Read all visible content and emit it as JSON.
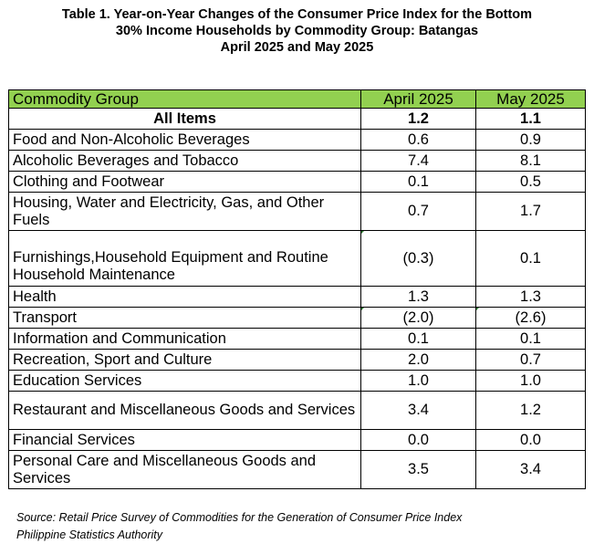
{
  "title": {
    "line1": "Table 1. Year-on-Year Changes of the Consumer Price Index for the Bottom",
    "line2": "30% Income Households by Commodity Group: Batangas",
    "line3": "April 2025 and May 2025"
  },
  "table": {
    "headers": [
      "Commodity Group",
      "April 2025",
      "May 2025"
    ],
    "all_items": {
      "label": "All Items",
      "april": "1.2",
      "may": "1.1"
    },
    "rows": [
      {
        "label": "Food and Non-Alcoholic Beverages",
        "april": "0.6",
        "may": "0.9"
      },
      {
        "label": "Alcoholic Beverages and Tobacco",
        "april": "7.4",
        "may": "8.1"
      },
      {
        "label": "Clothing and Footwear",
        "april": "0.1",
        "may": "0.5"
      },
      {
        "label": "Housing, Water and Electricity, Gas, and Other Fuels",
        "april": "0.7",
        "may": "1.7"
      },
      {
        "label": "Furnishings,Household Equipment and Routine Household Maintenance",
        "april": "(0.3)",
        "may": "0.1"
      },
      {
        "label": "Health",
        "april": "1.3",
        "may": "1.3"
      },
      {
        "label": "Transport",
        "april": "(2.0)",
        "may": "(2.6)"
      },
      {
        "label": "Information and Communication",
        "april": "0.1",
        "may": "0.1"
      },
      {
        "label": "Recreation, Sport and Culture",
        "april": "2.0",
        "may": "0.7"
      },
      {
        "label": "Education Services",
        "april": "1.0",
        "may": "1.0"
      },
      {
        "label": "Restaurant and Miscellaneous Goods and Services",
        "april": "3.4",
        "may": "1.2"
      },
      {
        "label": "Financial Services",
        "april": "0.0",
        "may": "0.0"
      },
      {
        "label": "Personal Care and Miscellaneous Goods and Services",
        "april": "3.5",
        "may": "3.4"
      }
    ]
  },
  "source": {
    "line1": "Source: Retail Price Survey of Commodities for the Generation of Consumer Price Index",
    "line2": "Philippine Statistics Authority"
  },
  "colors": {
    "header_fill": "#92d050",
    "border": "#000000",
    "comment_marker": "#2e7d32"
  }
}
